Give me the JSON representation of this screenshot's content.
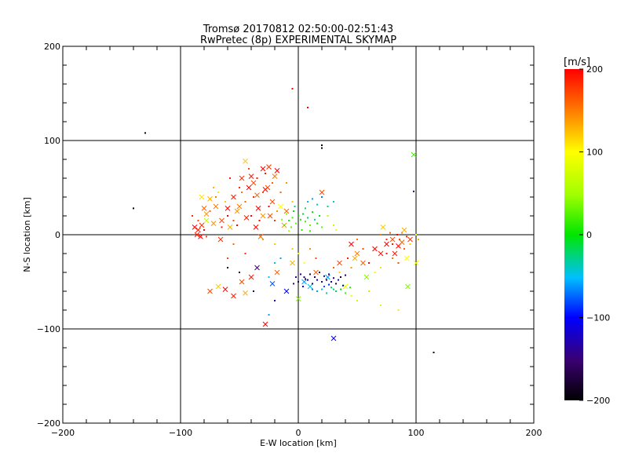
{
  "chart_data": {
    "type": "scatter",
    "title": "Tromsø 20170812 02:50:00-02:51:43",
    "subtitle": "RwPretec (8p) EXPERIMENTAL SKYMAP",
    "xlabel": "E-W location [km]",
    "ylabel": "N-S location [km]",
    "xlim": [
      -200,
      200
    ],
    "ylim": [
      -200,
      200
    ],
    "xticks": [
      -200,
      -100,
      0,
      100,
      200
    ],
    "yticks": [
      -200,
      -100,
      0,
      100,
      200
    ],
    "grid": true,
    "colorbar": {
      "label": "[m/s]",
      "min": -200,
      "max": 200,
      "ticks": [
        -200,
        -100,
        0,
        100,
        200
      ]
    },
    "series": [
      {
        "marker": "x",
        "points": [
          [
            -85,
            5,
            190
          ],
          [
            -82,
            10,
            180
          ],
          [
            -80,
            28,
            160
          ],
          [
            -78,
            22,
            140
          ],
          [
            -75,
            38,
            130
          ],
          [
            -70,
            30,
            150
          ],
          [
            -65,
            15,
            170
          ],
          [
            -60,
            28,
            200
          ],
          [
            -55,
            40,
            190
          ],
          [
            -50,
            30,
            150
          ],
          [
            -48,
            60,
            180
          ],
          [
            -45,
            78,
            120
          ],
          [
            -42,
            50,
            200
          ],
          [
            -40,
            62,
            190
          ],
          [
            -38,
            55,
            170
          ],
          [
            -35,
            42,
            160
          ],
          [
            -30,
            70,
            200
          ],
          [
            -28,
            48,
            200
          ],
          [
            -25,
            72,
            180
          ],
          [
            -22,
            35,
            170
          ],
          [
            -20,
            62,
            150
          ],
          [
            -15,
            30,
            100
          ],
          [
            -12,
            10,
            140
          ],
          [
            -10,
            25,
            160
          ],
          [
            -88,
            8,
            200
          ],
          [
            -83,
            -2,
            200
          ],
          [
            -72,
            12,
            140
          ],
          [
            -66,
            -5,
            180
          ],
          [
            -58,
            8,
            130
          ],
          [
            -52,
            25,
            140
          ],
          [
            -44,
            18,
            190
          ],
          [
            -36,
            8,
            200
          ],
          [
            -32,
            -2,
            160
          ],
          [
            -24,
            20,
            170
          ],
          [
            -75,
            -60,
            170
          ],
          [
            -68,
            -55,
            120
          ],
          [
            -62,
            -58,
            200
          ],
          [
            -55,
            -65,
            190
          ],
          [
            -48,
            -50,
            170
          ],
          [
            -40,
            -45,
            190
          ],
          [
            -35,
            -35,
            -150
          ],
          [
            -28,
            -95,
            200
          ],
          [
            -22,
            -52,
            -80
          ],
          [
            -18,
            -40,
            160
          ],
          [
            -10,
            -60,
            -100
          ],
          [
            -5,
            -30,
            130
          ],
          [
            0,
            -68,
            40
          ],
          [
            5,
            -50,
            -60
          ],
          [
            10,
            -55,
            -50
          ],
          [
            15,
            -40,
            160
          ],
          [
            20,
            45,
            170
          ],
          [
            25,
            -45,
            -60
          ],
          [
            30,
            -110,
            -110
          ],
          [
            35,
            -30,
            170
          ],
          [
            40,
            -55,
            80
          ],
          [
            45,
            -10,
            200
          ],
          [
            50,
            -20,
            150
          ],
          [
            58,
            -45,
            40
          ],
          [
            70,
            -20,
            190
          ],
          [
            75,
            -10,
            200
          ],
          [
            80,
            -5,
            170
          ],
          [
            82,
            -20,
            190
          ],
          [
            85,
            -12,
            200
          ],
          [
            88,
            -8,
            160
          ],
          [
            90,
            5,
            130
          ],
          [
            92,
            -25,
            100
          ],
          [
            95,
            -5,
            180
          ],
          [
            98,
            85,
            20
          ],
          [
            100,
            -30,
            90
          ],
          [
            93,
            -55,
            40
          ],
          [
            72,
            8,
            120
          ],
          [
            65,
            -15,
            200
          ],
          [
            55,
            -30,
            160
          ],
          [
            48,
            -25,
            130
          ],
          [
            -30,
            20,
            140
          ],
          [
            -34,
            28,
            200
          ],
          [
            -26,
            50,
            170
          ],
          [
            -18,
            68,
            200
          ],
          [
            -82,
            40,
            110
          ],
          [
            -78,
            15,
            70
          ],
          [
            -86,
            0,
            190
          ],
          [
            -45,
            -62,
            130
          ]
        ]
      },
      {
        "marker": "dot",
        "points": [
          [
            -130,
            108,
            -190
          ],
          [
            -140,
            28,
            -200
          ],
          [
            -5,
            155,
            200
          ],
          [
            8,
            135,
            200
          ],
          [
            20,
            92,
            -200
          ],
          [
            20,
            95,
            -200
          ],
          [
            98,
            46,
            -160
          ],
          [
            115,
            -125,
            -200
          ],
          [
            -38,
            -60,
            -170
          ],
          [
            -50,
            -40,
            -190
          ],
          [
            -60,
            -35,
            -180
          ],
          [
            -20,
            -70,
            -120
          ],
          [
            -25,
            -85,
            -60
          ],
          [
            5,
            -45,
            -140
          ],
          [
            8,
            -48,
            -150
          ],
          [
            10,
            -42,
            -160
          ],
          [
            12,
            -52,
            -130
          ],
          [
            14,
            -45,
            -170
          ],
          [
            16,
            -48,
            -120
          ],
          [
            18,
            -40,
            -180
          ],
          [
            20,
            -50,
            -150
          ],
          [
            22,
            -44,
            -140
          ],
          [
            24,
            -48,
            -170
          ],
          [
            26,
            -42,
            -160
          ],
          [
            28,
            -50,
            -130
          ],
          [
            30,
            -46,
            -150
          ],
          [
            32,
            -52,
            -170
          ],
          [
            -2,
            -45,
            -140
          ],
          [
            0,
            -50,
            -160
          ],
          [
            2,
            -42,
            -130
          ],
          [
            4,
            -55,
            -100
          ],
          [
            6,
            -47,
            -170
          ],
          [
            -4,
            -52,
            -150
          ],
          [
            34,
            -48,
            -140
          ],
          [
            36,
            -45,
            -180
          ],
          [
            38,
            -54,
            -120
          ],
          [
            40,
            -43,
            -160
          ],
          [
            12,
            -58,
            -70
          ],
          [
            16,
            -60,
            -60
          ],
          [
            20,
            -58,
            -50
          ],
          [
            24,
            -62,
            -40
          ],
          [
            28,
            -56,
            -20
          ],
          [
            32,
            -60,
            -10
          ],
          [
            36,
            -58,
            0
          ],
          [
            40,
            -62,
            20
          ],
          [
            44,
            -56,
            10
          ],
          [
            22,
            -55,
            -80
          ],
          [
            26,
            -53,
            -90
          ],
          [
            30,
            -58,
            -30
          ],
          [
            -8,
            15,
            10
          ],
          [
            -5,
            18,
            20
          ],
          [
            -2,
            12,
            30
          ],
          [
            0,
            20,
            0
          ],
          [
            2,
            16,
            10
          ],
          [
            4,
            22,
            -10
          ],
          [
            6,
            14,
            20
          ],
          [
            8,
            18,
            -20
          ],
          [
            10,
            10,
            30
          ],
          [
            12,
            24,
            0
          ],
          [
            14,
            16,
            -30
          ],
          [
            -10,
            22,
            40
          ],
          [
            -12,
            10,
            20
          ],
          [
            16,
            12,
            10
          ],
          [
            -6,
            8,
            30
          ],
          [
            -4,
            25,
            0
          ],
          [
            6,
            28,
            -20
          ],
          [
            10,
            4,
            20
          ],
          [
            -14,
            16,
            40
          ],
          [
            18,
            20,
            -10
          ],
          [
            20,
            8,
            30
          ],
          [
            3,
            5,
            10
          ],
          [
            -8,
            4,
            50
          ],
          [
            -3,
            30,
            -30
          ],
          [
            8,
            35,
            -50
          ],
          [
            12,
            38,
            -60
          ],
          [
            16,
            32,
            -40
          ],
          [
            20,
            40,
            -70
          ],
          [
            25,
            30,
            -30
          ],
          [
            30,
            35,
            -40
          ],
          [
            25,
            20,
            60
          ],
          [
            30,
            10,
            70
          ],
          [
            32,
            5,
            90
          ],
          [
            -90,
            20,
            180
          ],
          [
            -85,
            15,
            170
          ],
          [
            -80,
            5,
            200
          ],
          [
            -75,
            25,
            160
          ],
          [
            -70,
            40,
            150
          ],
          [
            -65,
            8,
            190
          ],
          [
            -60,
            20,
            200
          ],
          [
            -55,
            15,
            170
          ],
          [
            -50,
            50,
            180
          ],
          [
            -45,
            35,
            160
          ],
          [
            -40,
            20,
            200
          ],
          [
            -35,
            60,
            190
          ],
          [
            -30,
            45,
            170
          ],
          [
            -25,
            30,
            200
          ],
          [
            -20,
            15,
            180
          ],
          [
            -15,
            45,
            160
          ],
          [
            -10,
            55,
            140
          ],
          [
            -5,
            35,
            120
          ],
          [
            -78,
            -2,
            170
          ],
          [
            -72,
            50,
            130
          ],
          [
            -68,
            45,
            110
          ],
          [
            -62,
            35,
            120
          ],
          [
            -58,
            60,
            190
          ],
          [
            -52,
            10,
            200
          ],
          [
            -48,
            45,
            150
          ],
          [
            -42,
            70,
            170
          ],
          [
            -38,
            40,
            180
          ],
          [
            -33,
            15,
            200
          ],
          [
            -28,
            65,
            190
          ],
          [
            -22,
            55,
            160
          ],
          [
            -18,
            25,
            140
          ],
          [
            -55,
            -10,
            160
          ],
          [
            -45,
            -20,
            180
          ],
          [
            -30,
            -5,
            140
          ],
          [
            -20,
            -10,
            120
          ],
          [
            -60,
            -25,
            170
          ],
          [
            70,
            0,
            150
          ],
          [
            75,
            -5,
            180
          ],
          [
            78,
            2,
            160
          ],
          [
            80,
            -10,
            190
          ],
          [
            84,
            0,
            200
          ],
          [
            86,
            -5,
            170
          ],
          [
            88,
            2,
            140
          ],
          [
            90,
            -15,
            160
          ],
          [
            92,
            -2,
            190
          ],
          [
            95,
            -10,
            120
          ],
          [
            85,
            -30,
            170
          ],
          [
            80,
            -25,
            150
          ],
          [
            75,
            -20,
            190
          ],
          [
            100,
            0,
            100
          ],
          [
            102,
            -5,
            130
          ],
          [
            70,
            -35,
            110
          ],
          [
            65,
            -40,
            90
          ],
          [
            60,
            -30,
            200
          ],
          [
            55,
            -15,
            170
          ],
          [
            50,
            -5,
            150
          ],
          [
            45,
            -35,
            140
          ],
          [
            42,
            -25,
            190
          ],
          [
            60,
            -60,
            60
          ],
          [
            70,
            -75,
            80
          ],
          [
            85,
            -80,
            110
          ],
          [
            5,
            -30,
            100
          ],
          [
            0,
            -20,
            80
          ],
          [
            -5,
            -15,
            120
          ],
          [
            10,
            -15,
            140
          ],
          [
            15,
            -25,
            170
          ],
          [
            -15,
            -25,
            -60
          ],
          [
            -20,
            -30,
            -40
          ],
          [
            -25,
            -45,
            -50
          ],
          [
            30,
            -35,
            160
          ],
          [
            35,
            -40,
            120
          ],
          [
            45,
            -65,
            90
          ],
          [
            50,
            -70,
            70
          ]
        ]
      }
    ]
  }
}
